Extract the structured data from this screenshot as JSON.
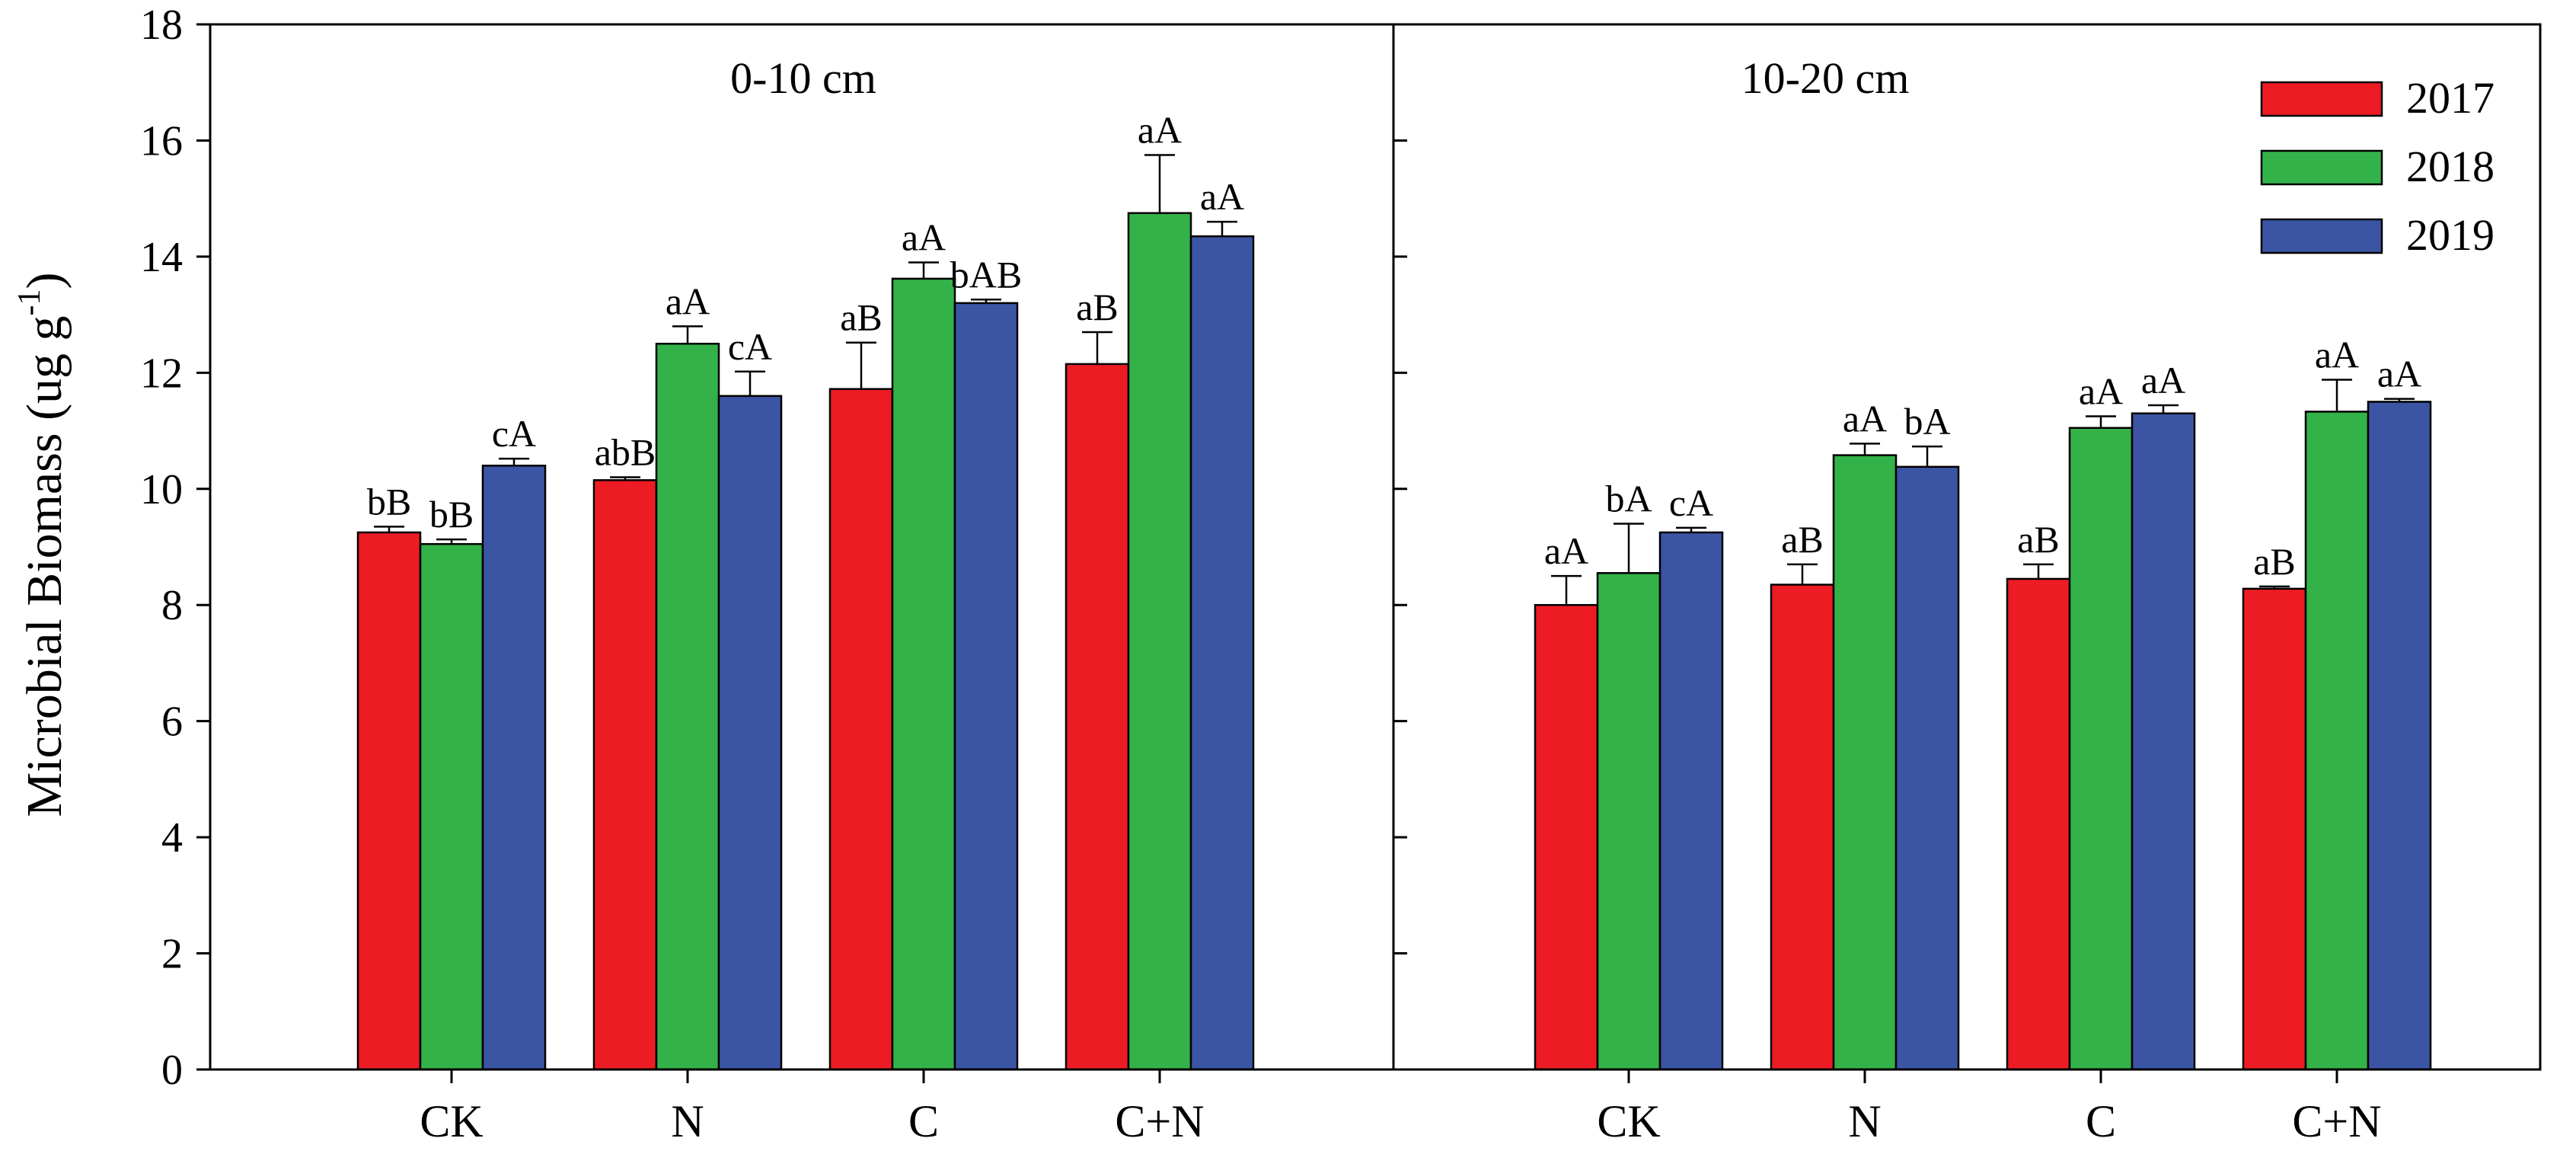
{
  "chart_data": {
    "type": "bar",
    "ylabel": "Microbial Biomass (ug g",
    "ylabel_superscript": "-1",
    "ylabel_close": ")",
    "ylim": [
      0,
      18
    ],
    "yticks": [
      0,
      2,
      4,
      6,
      8,
      10,
      12,
      14,
      16,
      18
    ],
    "categories": [
      "CK",
      "N",
      "C",
      "C+N"
    ],
    "legend": {
      "position": "top-right",
      "entries": [
        {
          "name": "2017",
          "color": "#ed1c24"
        },
        {
          "name": "2018",
          "color": "#33b249"
        },
        {
          "name": "2019",
          "color": "#3b55a4"
        }
      ]
    },
    "panels": [
      {
        "title": "0-10 cm",
        "series": [
          {
            "name": "2017",
            "values": [
              9.25,
              10.15,
              11.72,
              12.15
            ],
            "errors": [
              0.1,
              0.05,
              0.8,
              0.55
            ],
            "labels": [
              "bB",
              "abB",
              "aB",
              "aB"
            ]
          },
          {
            "name": "2018",
            "values": [
              9.05,
              12.5,
              13.62,
              14.75
            ],
            "errors": [
              0.08,
              0.3,
              0.28,
              1.0
            ],
            "labels": [
              "bB",
              "aA",
              "aA",
              "aA"
            ]
          },
          {
            "name": "2019",
            "values": [
              10.4,
              11.6,
              13.2,
              14.35
            ],
            "errors": [
              0.12,
              0.42,
              0.06,
              0.25
            ],
            "labels": [
              "cA",
              "cA",
              "bAB",
              "aA"
            ]
          }
        ]
      },
      {
        "title": "10-20 cm",
        "series": [
          {
            "name": "2017",
            "values": [
              8.0,
              8.35,
              8.45,
              8.28
            ],
            "errors": [
              0.5,
              0.35,
              0.25,
              0.04
            ],
            "labels": [
              "aA",
              "aB",
              "aB",
              "aB"
            ]
          },
          {
            "name": "2018",
            "values": [
              8.55,
              10.58,
              11.05,
              11.33
            ],
            "errors": [
              0.85,
              0.2,
              0.2,
              0.55
            ],
            "labels": [
              "bA",
              "aA",
              "aA",
              "aA"
            ]
          },
          {
            "name": "2019",
            "values": [
              9.25,
              10.38,
              11.3,
              11.5
            ],
            "errors": [
              0.08,
              0.35,
              0.14,
              0.05
            ],
            "labels": [
              "cA",
              "bA",
              "aA",
              "aA"
            ]
          }
        ]
      }
    ]
  }
}
